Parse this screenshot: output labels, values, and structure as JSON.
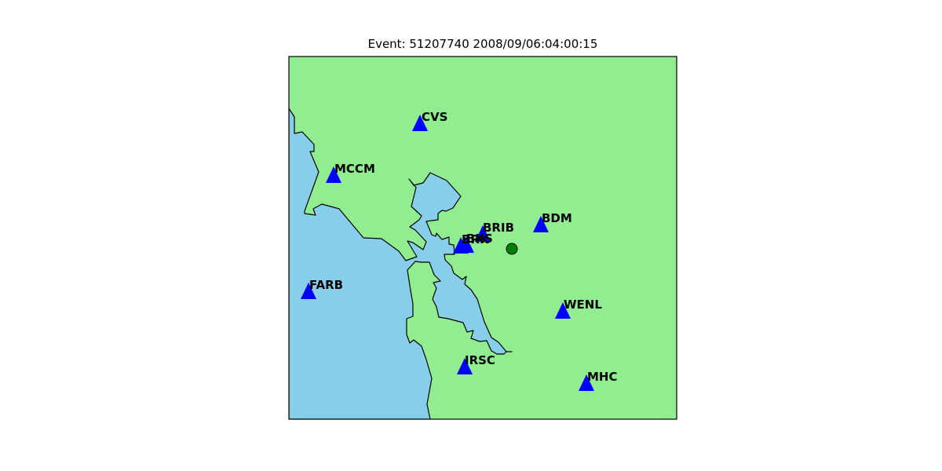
{
  "title": "Event: 51207740 2008/09/06:04:00:15",
  "colors": {
    "land": "#90ee90",
    "water": "#87ceeb",
    "station": "#0000ff",
    "event": "#008000",
    "outline": "#000000"
  },
  "stations": [
    {
      "code": "CVS"
    },
    {
      "code": "MCCM"
    },
    {
      "code": "BDM"
    },
    {
      "code": "BRIB"
    },
    {
      "code": "BKS"
    },
    {
      "code": "BRK"
    },
    {
      "code": "FARB"
    },
    {
      "code": "WENL"
    },
    {
      "code": "IRSC"
    },
    {
      "code": "MHC"
    }
  ],
  "event": {
    "id": "51207740",
    "marker": "event-epicenter-circle"
  }
}
